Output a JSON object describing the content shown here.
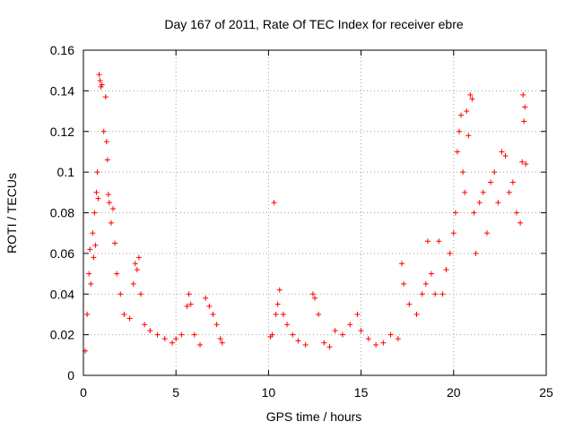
{
  "chart_data": {
    "type": "scatter",
    "title": "Day 167 of 2011, Rate Of TEC Index for receiver ebre",
    "xlabel": "GPS time / hours",
    "ylabel": "ROTI / TECUs",
    "xlim": [
      0,
      25
    ],
    "ylim": [
      0,
      0.16
    ],
    "xticks": [
      0,
      5,
      10,
      15,
      20,
      25
    ],
    "yticks": [
      0,
      0.02,
      0.04,
      0.06,
      0.08,
      0.1,
      0.12,
      0.14,
      0.16
    ],
    "xtick_labels": [
      "0",
      "5",
      "10",
      "15",
      "20",
      "25"
    ],
    "ytick_labels": [
      "0",
      "0.02",
      "0.04",
      "0.06",
      "0.08",
      "0.1",
      "0.12",
      "0.14",
      "0.16"
    ],
    "grid": true,
    "marker": "+",
    "color": "#ff0000",
    "series": [
      {
        "name": "ROTI",
        "points": [
          [
            0.1,
            0.012
          ],
          [
            0.2,
            0.03
          ],
          [
            0.3,
            0.05
          ],
          [
            0.35,
            0.062
          ],
          [
            0.4,
            0.045
          ],
          [
            0.5,
            0.07
          ],
          [
            0.55,
            0.058
          ],
          [
            0.6,
            0.08
          ],
          [
            0.65,
            0.064
          ],
          [
            0.7,
            0.09
          ],
          [
            0.75,
            0.1
          ],
          [
            0.8,
            0.087
          ],
          [
            0.85,
            0.148
          ],
          [
            0.9,
            0.145
          ],
          [
            0.95,
            0.142
          ],
          [
            1.0,
            0.143
          ],
          [
            1.1,
            0.12
          ],
          [
            1.2,
            0.137
          ],
          [
            1.25,
            0.115
          ],
          [
            1.3,
            0.106
          ],
          [
            1.35,
            0.089
          ],
          [
            1.4,
            0.085
          ],
          [
            1.5,
            0.075
          ],
          [
            1.6,
            0.082
          ],
          [
            1.7,
            0.065
          ],
          [
            1.8,
            0.05
          ],
          [
            2.0,
            0.04
          ],
          [
            2.2,
            0.03
          ],
          [
            2.5,
            0.028
          ],
          [
            2.7,
            0.045
          ],
          [
            2.8,
            0.055
          ],
          [
            2.9,
            0.052
          ],
          [
            3.0,
            0.058
          ],
          [
            3.1,
            0.04
          ],
          [
            3.3,
            0.025
          ],
          [
            3.6,
            0.022
          ],
          [
            4.0,
            0.02
          ],
          [
            4.4,
            0.018
          ],
          [
            4.8,
            0.016
          ],
          [
            5.0,
            0.018
          ],
          [
            5.3,
            0.02
          ],
          [
            5.6,
            0.034
          ],
          [
            5.7,
            0.04
          ],
          [
            5.8,
            0.035
          ],
          [
            6.0,
            0.02
          ],
          [
            6.3,
            0.015
          ],
          [
            6.6,
            0.038
          ],
          [
            6.8,
            0.034
          ],
          [
            7.0,
            0.03
          ],
          [
            7.2,
            0.025
          ],
          [
            7.4,
            0.018
          ],
          [
            7.5,
            0.016
          ],
          [
            10.1,
            0.019
          ],
          [
            10.2,
            0.02
          ],
          [
            10.3,
            0.085
          ],
          [
            10.4,
            0.03
          ],
          [
            10.5,
            0.035
          ],
          [
            10.6,
            0.042
          ],
          [
            10.8,
            0.03
          ],
          [
            11.0,
            0.025
          ],
          [
            11.3,
            0.02
          ],
          [
            11.6,
            0.017
          ],
          [
            12.0,
            0.015
          ],
          [
            12.4,
            0.04
          ],
          [
            12.5,
            0.038
          ],
          [
            12.7,
            0.03
          ],
          [
            13.0,
            0.016
          ],
          [
            13.3,
            0.014
          ],
          [
            13.6,
            0.022
          ],
          [
            14.0,
            0.02
          ],
          [
            14.4,
            0.025
          ],
          [
            14.8,
            0.03
          ],
          [
            15.0,
            0.022
          ],
          [
            15.4,
            0.018
          ],
          [
            15.8,
            0.015
          ],
          [
            16.2,
            0.016
          ],
          [
            16.6,
            0.02
          ],
          [
            17.0,
            0.018
          ],
          [
            17.2,
            0.055
          ],
          [
            17.3,
            0.045
          ],
          [
            17.6,
            0.035
          ],
          [
            18.0,
            0.03
          ],
          [
            18.3,
            0.04
          ],
          [
            18.5,
            0.045
          ],
          [
            18.6,
            0.066
          ],
          [
            18.8,
            0.05
          ],
          [
            19.0,
            0.04
          ],
          [
            19.2,
            0.066
          ],
          [
            19.4,
            0.04
          ],
          [
            19.6,
            0.052
          ],
          [
            19.8,
            0.06
          ],
          [
            20.0,
            0.07
          ],
          [
            20.1,
            0.08
          ],
          [
            20.2,
            0.11
          ],
          [
            20.3,
            0.12
          ],
          [
            20.4,
            0.128
          ],
          [
            20.5,
            0.1
          ],
          [
            20.6,
            0.09
          ],
          [
            20.7,
            0.13
          ],
          [
            20.8,
            0.118
          ],
          [
            20.9,
            0.138
          ],
          [
            21.0,
            0.136
          ],
          [
            21.1,
            0.08
          ],
          [
            21.2,
            0.06
          ],
          [
            21.4,
            0.085
          ],
          [
            21.6,
            0.09
          ],
          [
            21.8,
            0.07
          ],
          [
            22.0,
            0.095
          ],
          [
            22.2,
            0.1
          ],
          [
            22.4,
            0.085
          ],
          [
            22.6,
            0.11
          ],
          [
            22.8,
            0.108
          ],
          [
            23.0,
            0.09
          ],
          [
            23.2,
            0.095
          ],
          [
            23.4,
            0.08
          ],
          [
            23.6,
            0.075
          ],
          [
            23.7,
            0.105
          ],
          [
            23.75,
            0.138
          ],
          [
            23.8,
            0.125
          ],
          [
            23.85,
            0.132
          ],
          [
            23.9,
            0.104
          ]
        ]
      }
    ]
  }
}
